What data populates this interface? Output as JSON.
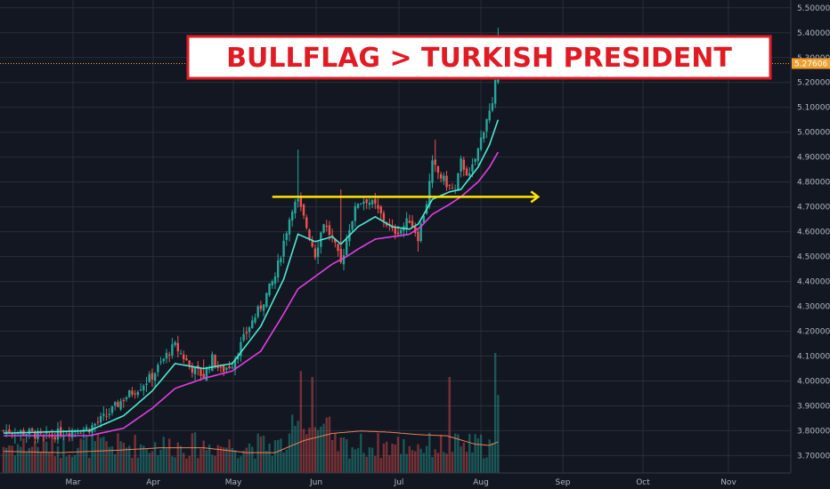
{
  "annotation": {
    "text": "BULLFLAG > TURKISH PRESIDENT"
  },
  "current_price": {
    "label": "5.27606",
    "value": 5.27606
  },
  "colors": {
    "background": "#131722",
    "grid": "#2a2e39",
    "up": "#26a69a",
    "down": "#ef5350",
    "ma_fast": "#4de8d4",
    "ma_slow": "#e040e0",
    "volume_ma": "#e8845a",
    "arrow": "#ffe500",
    "banner_border": "#e01b24",
    "price_marker": "#f0a030"
  },
  "chart_data": {
    "type": "candlestick",
    "title": "",
    "y_axis": {
      "ticks": [
        "3.70000",
        "3.80000",
        "3.90000",
        "4.00000",
        "4.10000",
        "4.20000",
        "4.30000",
        "4.40000",
        "4.50000",
        "4.60000",
        "4.70000",
        "4.80000",
        "4.90000",
        "5.00000",
        "5.10000",
        "5.20000",
        "5.30000",
        "5.40000",
        "5.50000"
      ],
      "range": [
        3.63,
        5.51
      ]
    },
    "x_axis": {
      "ticks": [
        "Mar",
        "Apr",
        "May",
        "Jun",
        "Jul",
        "Aug",
        "Sep",
        "Oct",
        "Nov"
      ]
    },
    "grid": true,
    "price_anchors": [
      [
        0,
        3.8
      ],
      [
        10,
        3.79
      ],
      [
        14,
        3.77
      ],
      [
        22,
        3.8
      ],
      [
        30,
        3.81
      ],
      [
        36,
        3.86
      ],
      [
        42,
        3.93
      ],
      [
        48,
        3.98
      ],
      [
        52,
        4.02
      ],
      [
        58,
        4.12
      ],
      [
        60,
        4.14
      ],
      [
        66,
        4.05
      ],
      [
        70,
        4.02
      ],
      [
        73,
        4.09
      ],
      [
        76,
        4.04
      ],
      [
        80,
        4.07
      ],
      [
        86,
        4.22
      ],
      [
        90,
        4.3
      ],
      [
        95,
        4.42
      ],
      [
        98,
        4.56
      ],
      [
        101,
        4.7
      ],
      [
        103,
        4.72
      ],
      [
        106,
        4.62
      ],
      [
        109,
        4.51
      ],
      [
        112,
        4.64
      ],
      [
        115,
        4.57
      ],
      [
        118,
        4.47
      ],
      [
        121,
        4.62
      ],
      [
        124,
        4.72
      ],
      [
        127,
        4.73
      ],
      [
        130,
        4.7
      ],
      [
        133,
        4.65
      ],
      [
        136,
        4.6
      ],
      [
        139,
        4.61
      ],
      [
        142,
        4.65
      ],
      [
        145,
        4.58
      ],
      [
        148,
        4.72
      ],
      [
        150,
        4.87
      ],
      [
        153,
        4.82
      ],
      [
        156,
        4.78
      ],
      [
        158,
        4.76
      ],
      [
        160,
        4.88
      ],
      [
        163,
        4.82
      ],
      [
        166,
        4.93
      ],
      [
        169,
        5.06
      ],
      [
        171,
        5.1
      ],
      [
        173,
        5.28
      ]
    ],
    "fast_ma_anchors": [
      [
        0,
        3.79
      ],
      [
        30,
        3.8
      ],
      [
        42,
        3.86
      ],
      [
        52,
        3.96
      ],
      [
        60,
        4.07
      ],
      [
        70,
        4.05
      ],
      [
        80,
        4.07
      ],
      [
        90,
        4.22
      ],
      [
        98,
        4.41
      ],
      [
        103,
        4.59
      ],
      [
        109,
        4.56
      ],
      [
        115,
        4.58
      ],
      [
        118,
        4.55
      ],
      [
        124,
        4.62
      ],
      [
        130,
        4.66
      ],
      [
        136,
        4.62
      ],
      [
        142,
        4.61
      ],
      [
        145,
        4.63
      ],
      [
        150,
        4.73
      ],
      [
        156,
        4.76
      ],
      [
        160,
        4.77
      ],
      [
        166,
        4.86
      ],
      [
        170,
        4.95
      ],
      [
        173,
        5.05
      ]
    ],
    "slow_ma_anchors": [
      [
        0,
        3.78
      ],
      [
        30,
        3.78
      ],
      [
        42,
        3.81
      ],
      [
        52,
        3.89
      ],
      [
        60,
        3.97
      ],
      [
        70,
        4.01
      ],
      [
        80,
        4.04
      ],
      [
        90,
        4.12
      ],
      [
        98,
        4.27
      ],
      [
        103,
        4.37
      ],
      [
        109,
        4.42
      ],
      [
        115,
        4.47
      ],
      [
        120,
        4.5
      ],
      [
        124,
        4.53
      ],
      [
        130,
        4.57
      ],
      [
        136,
        4.58
      ],
      [
        142,
        4.59
      ],
      [
        146,
        4.62
      ],
      [
        150,
        4.67
      ],
      [
        156,
        4.71
      ],
      [
        160,
        4.74
      ],
      [
        166,
        4.8
      ],
      [
        170,
        4.86
      ],
      [
        173,
        4.92
      ]
    ],
    "volume_ma_anchors": [
      [
        0,
        0.18
      ],
      [
        20,
        0.17
      ],
      [
        40,
        0.19
      ],
      [
        55,
        0.21
      ],
      [
        70,
        0.21
      ],
      [
        85,
        0.17
      ],
      [
        95,
        0.17
      ],
      [
        105,
        0.27
      ],
      [
        115,
        0.33
      ],
      [
        125,
        0.35
      ],
      [
        135,
        0.34
      ],
      [
        145,
        0.32
      ],
      [
        155,
        0.31
      ],
      [
        165,
        0.24
      ],
      [
        170,
        0.23
      ],
      [
        173,
        0.26
      ]
    ],
    "resistance_level": 4.74
  }
}
